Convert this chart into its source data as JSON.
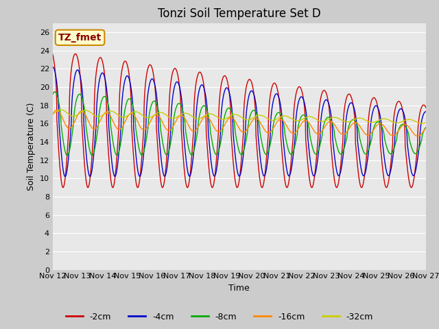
{
  "title": "Tonzi Soil Temperature Set D",
  "xlabel": "Time",
  "ylabel": "Soil Temperature (C)",
  "ylim": [
    0,
    27
  ],
  "yticks": [
    0,
    2,
    4,
    6,
    8,
    10,
    12,
    14,
    16,
    18,
    20,
    22,
    24,
    26
  ],
  "x_tick_days": [
    12,
    13,
    14,
    15,
    16,
    17,
    18,
    19,
    20,
    21,
    22,
    23,
    24,
    25,
    26,
    27
  ],
  "series_labels": [
    "-2cm",
    "-4cm",
    "-8cm",
    "-16cm",
    "-32cm"
  ],
  "series_colors": [
    "#cc0000",
    "#0000cc",
    "#00aa00",
    "#ff8800",
    "#cccc00"
  ],
  "plot_bg_color": "#e8e8e8",
  "annotation_text": "TZ_fmet",
  "annotation_bg": "#ffffcc",
  "annotation_border": "#cc8800",
  "title_fontsize": 12,
  "label_fontsize": 9,
  "tick_fontsize": 8,
  "legend_fontsize": 9
}
